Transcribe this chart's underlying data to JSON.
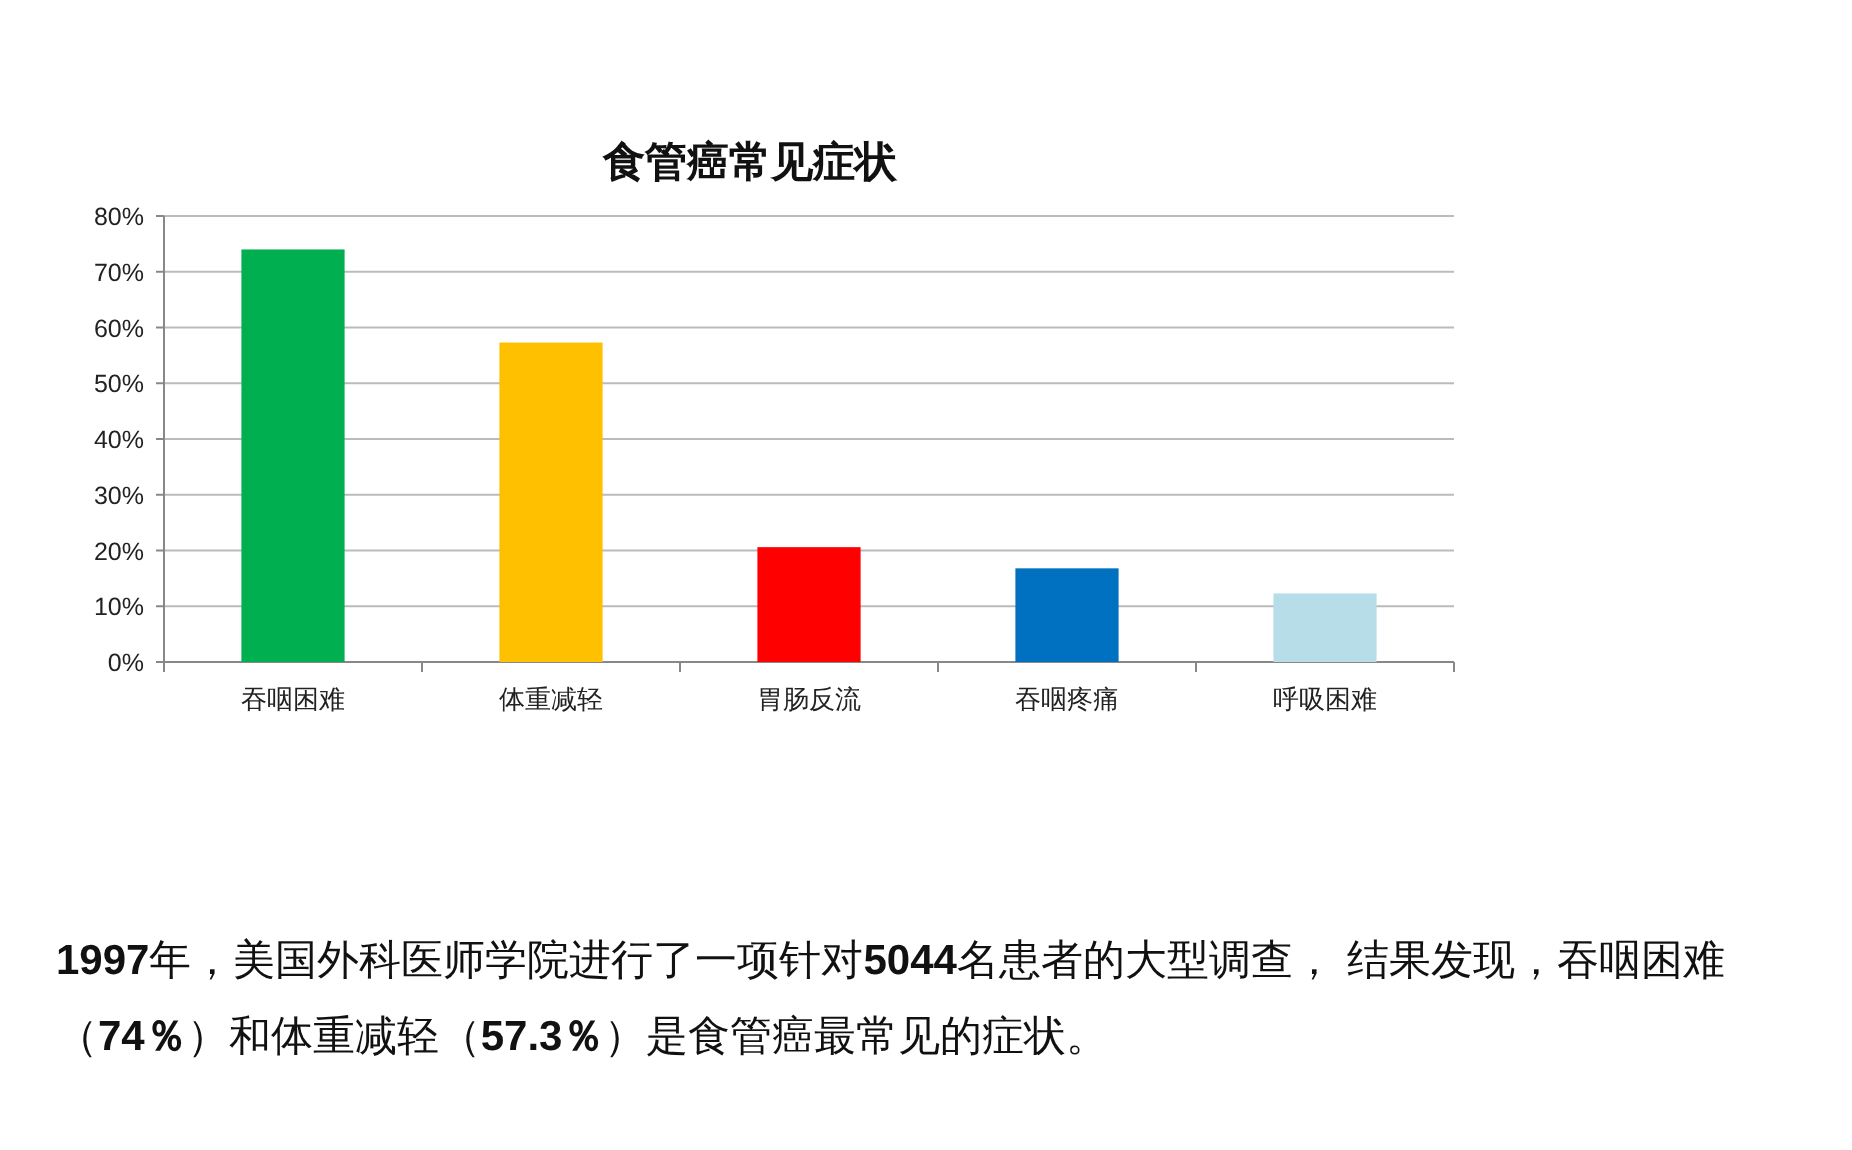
{
  "chart_data": {
    "type": "bar",
    "title": "食管癌常见症状",
    "categories": [
      "吞咽困难",
      "体重减轻",
      "胃肠反流",
      "吞咽疼痛",
      "呼吸困难"
    ],
    "values": [
      74,
      57.3,
      20.6,
      16.8,
      12.3
    ],
    "colors": [
      "#00b050",
      "#ffc000",
      "#ff0000",
      "#0070c0",
      "#b7dee8"
    ],
    "ylim": [
      0,
      80
    ],
    "yticks": [
      {
        "value": 0,
        "label": "0%"
      },
      {
        "value": 10,
        "label": "10%"
      },
      {
        "value": 20,
        "label": "20%"
      },
      {
        "value": 30,
        "label": "30%"
      },
      {
        "value": 40,
        "label": "40%"
      },
      {
        "value": 50,
        "label": "50%"
      },
      {
        "value": 60,
        "label": "60%"
      },
      {
        "value": 70,
        "label": "70%"
      },
      {
        "value": 80,
        "label": "80%"
      }
    ],
    "grid": "y",
    "annotations": [
      "**1997**年，美国外科医师学院进行了一项针对**5044**名患者的大型调查， 结果发现，吞咽困难（**74％**）和体重减轻（**57.3％**）是食管癌最常见的症状。"
    ]
  }
}
